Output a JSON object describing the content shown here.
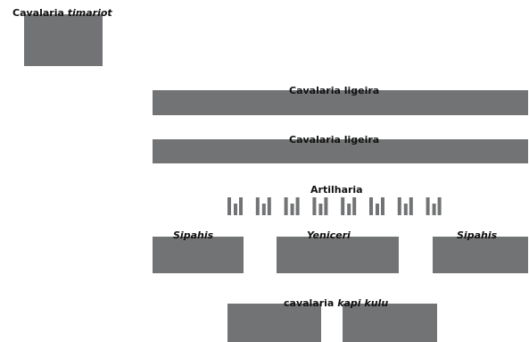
{
  "colors": {
    "unit_block": "#717375",
    "label_text": "#111111",
    "background": "#ffffff"
  },
  "timariot": {
    "prefix": "Cavalaria ",
    "emph": "timariot"
  },
  "light_cav_1": {
    "label": "Cavalaria ligeira"
  },
  "light_cav_2": {
    "label": "Cavalaria ligeira"
  },
  "artillery": {
    "label": "Artilharia",
    "group_count": 8
  },
  "sipahis_left": {
    "label": "Sipahis"
  },
  "yeniceri": {
    "label": "Yeniceri"
  },
  "sipahis_right": {
    "label": "Sipahis"
  },
  "kapikulu": {
    "prefix": "cavalaria ",
    "emph": "kapi kulu"
  }
}
